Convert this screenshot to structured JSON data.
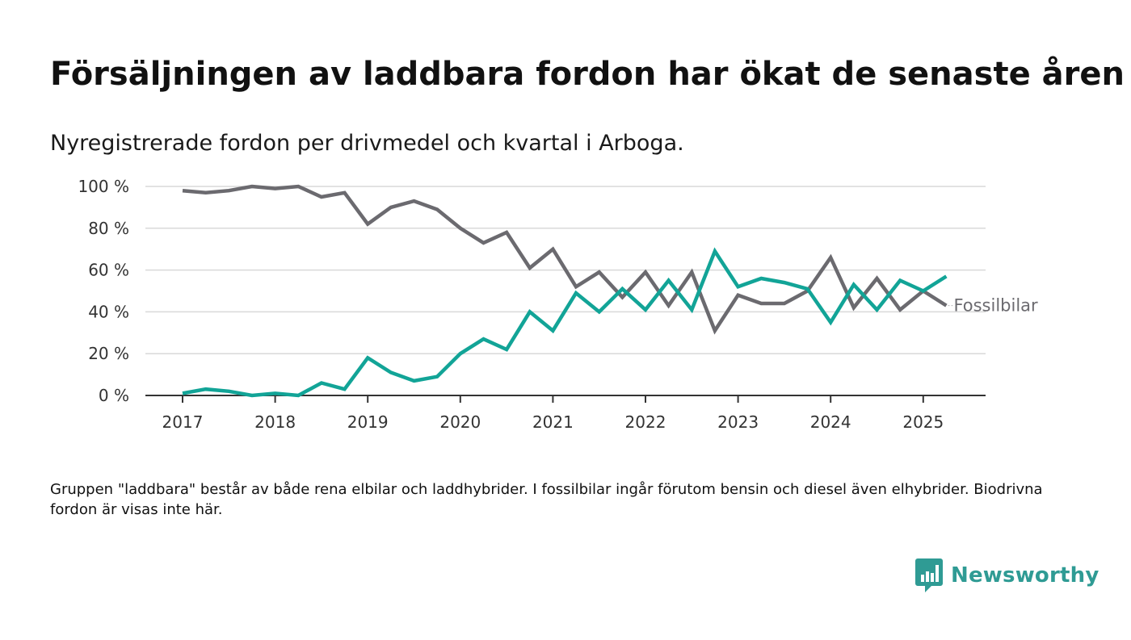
{
  "page": {
    "title": "Försäljningen av laddbara fordon har ökat de senaste åren",
    "subtitle": "Nyregistrerade fordon per drivmedel och kvartal i Arboga.",
    "footnote": "Gruppen \"laddbara\" består av både rena elbilar och laddhybrider. I fossilbilar ingår förutom bensin och diesel även elhybrider. Biodrivna fordon är visas inte här.",
    "brand": "Newsworthy",
    "brand_color": "#2f9b94"
  },
  "chart_data": {
    "type": "line",
    "title": "Försäljningen av laddbara fordon har ökat de senaste åren",
    "subtitle": "Nyregistrerade fordon per drivmedel och kvartal i Arboga.",
    "xlabel": "",
    "ylabel": "",
    "x": [
      "2017-Q1",
      "2017-Q2",
      "2017-Q3",
      "2017-Q4",
      "2018-Q1",
      "2018-Q2",
      "2018-Q3",
      "2018-Q4",
      "2019-Q1",
      "2019-Q2",
      "2019-Q3",
      "2019-Q4",
      "2020-Q1",
      "2020-Q2",
      "2020-Q3",
      "2020-Q4",
      "2021-Q1",
      "2021-Q2",
      "2021-Q3",
      "2021-Q4",
      "2022-Q1",
      "2022-Q2",
      "2022-Q3",
      "2022-Q4",
      "2023-Q1",
      "2023-Q2",
      "2023-Q3",
      "2023-Q4",
      "2024-Q1",
      "2024-Q2",
      "2024-Q3",
      "2024-Q4",
      "2025-Q1",
      "2025-Q2"
    ],
    "x_tick_labels": [
      "2017",
      "2018",
      "2019",
      "2020",
      "2021",
      "2022",
      "2023",
      "2024",
      "2025"
    ],
    "y_ticks": [
      0,
      20,
      40,
      60,
      80,
      100
    ],
    "y_tick_labels": [
      "0 %",
      "20 %",
      "40 %",
      "60 %",
      "80 %",
      "100 %"
    ],
    "ylim": [
      0,
      100
    ],
    "grid": true,
    "legend": "inline label at line end",
    "series": [
      {
        "name": "Fossilbilar",
        "color": "#6b6a6f",
        "values": [
          98,
          97,
          98,
          100,
          99,
          100,
          95,
          97,
          82,
          90,
          93,
          89,
          80,
          73,
          78,
          61,
          70,
          52,
          59,
          47,
          59,
          43,
          59,
          31,
          48,
          44,
          44,
          50,
          66,
          42,
          56,
          41,
          50,
          43
        ]
      },
      {
        "color": "#12a497",
        "values": [
          1,
          3,
          2,
          0,
          1,
          0,
          6,
          3,
          18,
          11,
          7,
          9,
          20,
          27,
          22,
          40,
          31,
          49,
          40,
          51,
          41,
          55,
          41,
          69,
          52,
          56,
          54,
          51,
          35,
          53,
          41,
          55,
          50,
          57
        ]
      }
    ]
  }
}
